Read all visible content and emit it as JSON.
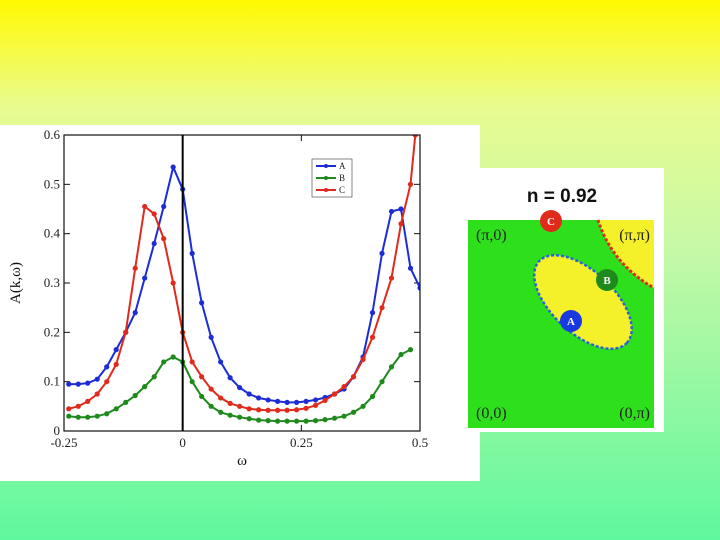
{
  "chart_data": {
    "type": "line",
    "title": "",
    "xlabel": "ω",
    "ylabel": "A(k,ω)",
    "xlim": [
      -0.25,
      0.5
    ],
    "ylim": [
      0,
      0.6
    ],
    "xticks": [
      -0.25,
      0,
      0.25,
      0.5
    ],
    "xtick_labels": [
      "-0.25",
      "0",
      "0.25",
      "0.5"
    ],
    "yticks": [
      0,
      0.1,
      0.2,
      0.3,
      0.4,
      0.5,
      0.6
    ],
    "ytick_labels": [
      "0",
      "0.1",
      "0.2",
      "0.3",
      "0.4",
      "0.5",
      "0.6"
    ],
    "legend_position": "top-right",
    "vertical_line_at": 0,
    "series": [
      {
        "name": "A",
        "color": "#1c2dd6",
        "x": [
          -0.24,
          -0.22,
          -0.2,
          -0.18,
          -0.16,
          -0.14,
          -0.12,
          -0.1,
          -0.08,
          -0.06,
          -0.04,
          -0.02,
          0.0,
          0.02,
          0.04,
          0.06,
          0.08,
          0.1,
          0.12,
          0.14,
          0.16,
          0.18,
          0.2,
          0.22,
          0.24,
          0.26,
          0.28,
          0.3,
          0.32,
          0.34,
          0.36,
          0.38,
          0.4,
          0.42,
          0.44,
          0.46,
          0.48,
          0.5
        ],
        "y": [
          0.095,
          0.095,
          0.097,
          0.105,
          0.13,
          0.165,
          0.2,
          0.24,
          0.31,
          0.38,
          0.455,
          0.535,
          0.49,
          0.36,
          0.26,
          0.19,
          0.14,
          0.108,
          0.088,
          0.075,
          0.067,
          0.063,
          0.06,
          0.058,
          0.058,
          0.06,
          0.063,
          0.068,
          0.075,
          0.085,
          0.11,
          0.15,
          0.24,
          0.36,
          0.445,
          0.45,
          0.33,
          0.29
        ]
      },
      {
        "name": "B",
        "color": "#1f8a1c",
        "x": [
          -0.24,
          -0.22,
          -0.2,
          -0.18,
          -0.16,
          -0.14,
          -0.12,
          -0.1,
          -0.08,
          -0.06,
          -0.04,
          -0.02,
          0.0,
          0.02,
          0.04,
          0.06,
          0.08,
          0.1,
          0.12,
          0.14,
          0.16,
          0.18,
          0.2,
          0.22,
          0.24,
          0.26,
          0.28,
          0.3,
          0.32,
          0.34,
          0.36,
          0.38,
          0.4,
          0.42,
          0.44,
          0.46,
          0.48
        ],
        "y": [
          0.03,
          0.028,
          0.028,
          0.03,
          0.035,
          0.045,
          0.058,
          0.072,
          0.09,
          0.11,
          0.14,
          0.15,
          0.14,
          0.1,
          0.07,
          0.05,
          0.038,
          0.032,
          0.028,
          0.025,
          0.022,
          0.021,
          0.02,
          0.02,
          0.02,
          0.02,
          0.021,
          0.023,
          0.026,
          0.03,
          0.038,
          0.05,
          0.07,
          0.1,
          0.13,
          0.155,
          0.165
        ]
      },
      {
        "name": "C",
        "color": "#e02a1c",
        "x": [
          -0.24,
          -0.22,
          -0.2,
          -0.18,
          -0.16,
          -0.14,
          -0.12,
          -0.1,
          -0.08,
          -0.06,
          -0.04,
          -0.02,
          0.0,
          0.02,
          0.04,
          0.06,
          0.08,
          0.1,
          0.12,
          0.14,
          0.16,
          0.18,
          0.2,
          0.22,
          0.24,
          0.26,
          0.28,
          0.3,
          0.32,
          0.34,
          0.36,
          0.38,
          0.4,
          0.42,
          0.44,
          0.46,
          0.48,
          0.49
        ],
        "y": [
          0.045,
          0.05,
          0.06,
          0.075,
          0.1,
          0.135,
          0.2,
          0.33,
          0.455,
          0.44,
          0.39,
          0.3,
          0.2,
          0.14,
          0.11,
          0.085,
          0.067,
          0.056,
          0.05,
          0.045,
          0.043,
          0.042,
          0.042,
          0.042,
          0.043,
          0.046,
          0.052,
          0.062,
          0.075,
          0.09,
          0.11,
          0.145,
          0.19,
          0.25,
          0.31,
          0.42,
          0.5,
          0.6
        ]
      }
    ]
  },
  "fermi_surface_map": {
    "title": "n = 0.92",
    "corners": {
      "top_left": "(π,0)",
      "top_right": "(π,π)",
      "bottom_left": "(0,0)",
      "bottom_right": "(0,π)"
    },
    "points": [
      {
        "label": "A",
        "color": "#1838e0"
      },
      {
        "label": "B",
        "color": "#1f8a1c"
      },
      {
        "label": "C",
        "color": "#e02a1c"
      }
    ]
  }
}
